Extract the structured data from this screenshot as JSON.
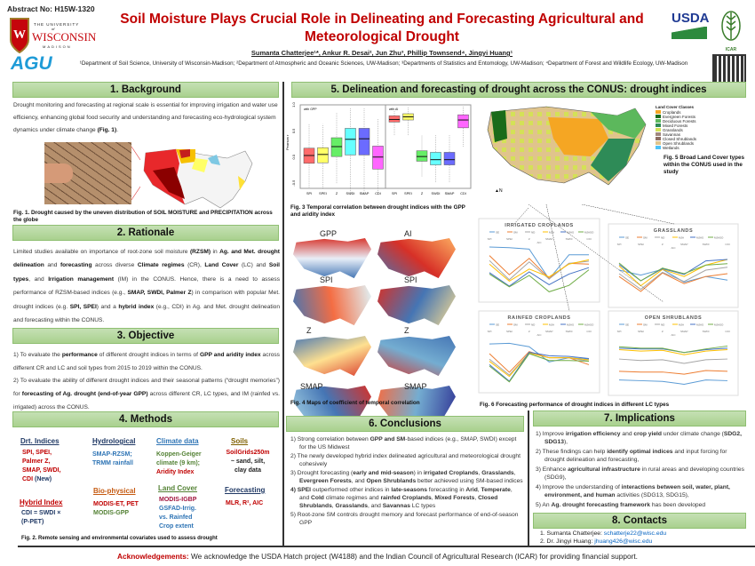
{
  "header": {
    "abstract": "Abstract No: H15W-1320",
    "title": "Soil Moisture Plays Crucial Role in Delineating and Forecasting Agricultural and Meteorological Drought",
    "authors": "Sumanta Chatterjee¹*, Ankur R. Desai², Jun Zhu³, Phillip Townsend⁴, Jingyi Huang¹",
    "affiliations": "¹Department of Soil Science, University of Wisconsin-Madison; ²Department of Atmospheric and Oceanic Sciences, UW-Madison; ³Departments of Statistics and Entomology, UW-Madison; ⁴Department of Forest and Wildlife Ecology, UW-Madison",
    "logos": {
      "uw_line1": "THE UNIVERSITY",
      "uw_line2": "of",
      "uw_line3": "WISCONSIN",
      "uw_line4": "MADISON",
      "agu": "AGU",
      "usda": "USDA",
      "icar": "ICAR"
    }
  },
  "colors": {
    "title": "#c00000",
    "header_green": "#a9d18e",
    "link": "#0563c1"
  },
  "background": {
    "heading": "1. Background",
    "text": [
      [
        "Drought monitoring and forecasting at regional scale is essential for improving irrigation and water use efficiency, enhancing global food security and understanding and forecasting eco-hydrological system dynamics under climate change ",
        0
      ],
      [
        "(Fig. 1)",
        1
      ],
      [
        ".",
        0
      ]
    ],
    "caption": "Fig. 1. Drought caused by the uneven distribution of SOIL MOISTURE and PRECIPITATION across the globe"
  },
  "rationale": {
    "heading": "2. Rationale",
    "text": [
      [
        "Limited studies available on importance of root-zone soil moisture ",
        0
      ],
      [
        "(RZSM)",
        1
      ],
      [
        " in ",
        0
      ],
      [
        "Ag. and Met. drought delineation",
        1
      ],
      [
        " and ",
        0
      ],
      [
        "forecasting",
        1
      ],
      [
        " across diverse ",
        0
      ],
      [
        "Climate regimes",
        1
      ],
      [
        " (CR), ",
        0
      ],
      [
        "Land Cover",
        1
      ],
      [
        " (LC) and ",
        0
      ],
      [
        "Soil types",
        1
      ],
      [
        ", and ",
        0
      ],
      [
        "Irrigation management",
        1
      ],
      [
        " (IM) in the CONUS. Hence, there is a need to assess performance of RZSM-based indices (e.g., ",
        0
      ],
      [
        "SMAP, SWDI, Palmer Z",
        1
      ],
      [
        ") in comparison with popular Met. drought indices (e.g. ",
        0
      ],
      [
        "SPI, SPEI",
        1
      ],
      [
        ") and a ",
        0
      ],
      [
        "hybrid index",
        1
      ],
      [
        " (e.g., CDI) in Ag. and Met. drought delineation and forecasting within the CONUS.",
        0
      ]
    ]
  },
  "objective": {
    "heading": "3. Objective",
    "text1": [
      [
        "1) To evaluate the ",
        0
      ],
      [
        "performance",
        1
      ],
      [
        " of different drought indices in terms of ",
        0
      ],
      [
        "GPP and aridity index",
        1
      ],
      [
        " across different CR and LC and soil types from 2015 to 2019 within the CONUS.",
        0
      ]
    ],
    "text2": [
      [
        "2) To evaluate the ability of different drought indices and their seasonal patterns (“drought memories”) for ",
        0
      ],
      [
        "forecasting of Ag. drought (end-of-year GPP)",
        1
      ],
      [
        " across different CR, LC types, and IM (rainfed vs. irrigated) across the CONUS.",
        0
      ]
    ]
  },
  "methods": {
    "heading": "4. Methods",
    "drt_title": "Drt. Indices",
    "drt_items": [
      "SPI, SPEI,",
      "Palmer Z,",
      "SMAP, SWDI,"
    ],
    "drt_cdi": "CDI",
    "drt_new": " (New)",
    "hybrid_title": "Hybrid Index",
    "hybrid_items": [
      "CDI = SWDI ×",
      "(P-PET)"
    ],
    "hydro_title": "Hydrological",
    "hydro_items": [
      "SMAP-RZSM;",
      "TRMM rainfall"
    ],
    "bio_title": "Bio-physical",
    "bio_items": [
      "MODIS-ET, PET",
      "MODIS-GPP"
    ],
    "climate_title": "Climate data",
    "climate_items": [
      "Koppen-Geiger",
      "climate (9 km);"
    ],
    "climate_aridity": "Aridity Index",
    "land_title": "Land Cover",
    "land_igbp": "MODIS-IGBP",
    "land_items": [
      "GSFAD-Irrig.",
      "vs. Rainfed",
      "Crop extent"
    ],
    "soils_title": "Soils",
    "soils_src": "SoilGrids250m",
    "soils_items": [
      "~ sand, silt,",
      "clay data"
    ],
    "forecast_title": "Forecasting",
    "forecast_items": "MLR, R², AIC",
    "caption": "Fig. 2. Remote sensing and environmental covariates used to assess drought"
  },
  "delineation": {
    "heading": "5. Delineation and forecasting of drought across the CONUS: drought indices",
    "fig3_caption": "Fig. 3 Temporal correlation between drought indices with the GPP and aridity index",
    "fig4_caption": "Fig. 4 Maps of coefficient of temporal correlation",
    "fig4_labels": [
      "GPP",
      "AI",
      "SPI",
      "SPI",
      "Z",
      "Z",
      "SMAP",
      "SMAP"
    ],
    "fig5_caption": "Fig. 5 Broad Land Cover types within the CONUS used in the study",
    "fig5_legend_title": "Land Cover Classes",
    "fig5_legend": [
      {
        "label": "Croplands",
        "color": "#f5a623"
      },
      {
        "label": "Evergreen Forests",
        "color": "#1a6b1a"
      },
      {
        "label": "Deciduous Forests",
        "color": "#5cb85c"
      },
      {
        "label": "Mixed Forests",
        "color": "#2e8b57"
      },
      {
        "label": "Grasslands",
        "color": "#d4e157"
      },
      {
        "label": "Savannas",
        "color": "#a1887f"
      },
      {
        "label": "Closed Shrublands",
        "color": "#8d6e63"
      },
      {
        "label": "Open Shrublands",
        "color": "#e0c48c"
      },
      {
        "label": "Wetlands",
        "color": "#4fc3f7"
      }
    ],
    "fig6_caption": "Fig. 6 Forecasting performance of drought indices in different LC types"
  },
  "chart_data": [
    {
      "type": "box",
      "title": "with GPP",
      "ylabel": "Pearson r",
      "ylim": [
        -0.6,
        1.0
      ],
      "yticks": [
        "-0.5",
        "0.0",
        "0.5",
        "1.0"
      ],
      "categories": [
        "SPI",
        "SPEI",
        "Z",
        "SWDI",
        "SMAP",
        "CDI"
      ],
      "colors": [
        "#ff6b6b",
        "#ffff66",
        "#66ee66",
        "#66ffff",
        "#6b6bff",
        "#ff66ff"
      ],
      "boxes": [
        [
          -0.58,
          -0.12,
          0.03,
          0.17,
          0.63
        ],
        [
          -0.6,
          -0.11,
          0.05,
          0.18,
          0.63
        ],
        [
          -0.5,
          0.01,
          0.2,
          0.37,
          0.85
        ],
        [
          -0.72,
          0.04,
          0.34,
          0.55,
          0.95
        ],
        [
          -0.72,
          0.04,
          0.35,
          0.55,
          0.95
        ],
        [
          -0.72,
          -0.23,
          0.0,
          0.21,
          0.74
        ]
      ]
    },
    {
      "type": "box",
      "title": "with AI",
      "ylim": [
        -0.6,
        1.0
      ],
      "categories": [
        "SPI",
        "SPEI",
        "Z",
        "SWDI",
        "SMAP",
        "CDI"
      ],
      "colors": [
        "#ff6b6b",
        "#ffff66",
        "#66ee66",
        "#66ffff",
        "#6b6bff",
        "#ff66ff"
      ],
      "boxes": [
        [
          0.42,
          0.67,
          0.72,
          0.79,
          0.93
        ],
        [
          0.42,
          0.71,
          0.77,
          0.83,
          0.95
        ],
        [
          -0.37,
          -0.08,
          0.01,
          0.12,
          0.42
        ],
        [
          -0.48,
          -0.15,
          -0.05,
          0.09,
          0.42
        ],
        [
          -0.48,
          -0.15,
          -0.05,
          0.09,
          0.42
        ],
        [
          0.2,
          0.56,
          0.71,
          0.81,
          0.98
        ]
      ]
    },
    {
      "type": "line",
      "title": "IRRIGATED CROPLANDS",
      "xlabel": "AIC",
      "categories": [
        "SPI",
        "SPEI",
        "Z",
        "SMAP",
        "SWDI",
        "CDI"
      ],
      "legend": [
        "SE",
        "SM",
        "ND",
        "MJA",
        "MJAS",
        "MJASO"
      ],
      "series": [
        [
          8,
          7.9,
          7.7,
          3.5,
          6.9,
          6.9
        ],
        [
          6.8,
          4.1,
          6.4,
          3.6,
          5.7,
          5.6
        ],
        [
          6.1,
          3.4,
          5.9,
          3.5,
          5.7,
          6
        ],
        [
          5.6,
          3.2,
          4.9,
          3.8,
          5.6,
          6.2
        ],
        [
          4.4,
          2.5,
          4.5,
          2.7,
          4.2,
          5.1
        ],
        [
          4.2,
          2.4,
          4,
          1.7,
          2.6,
          4.8
        ]
      ]
    },
    {
      "type": "line",
      "title": "GRASSLANDS",
      "xlabel": "AIC",
      "categories": [
        "SPI",
        "SPEI",
        "Z",
        "SMAP",
        "SWDI",
        "CDI"
      ],
      "legend": [
        "SE",
        "SM",
        "ND",
        "MJA",
        "MJAS",
        "MJASO"
      ],
      "series": [
        [
          5.5,
          4.8,
          5.6,
          3.8,
          4.6,
          4.1
        ],
        [
          4.6,
          2.5,
          5.1,
          3.6,
          4.6,
          5
        ],
        [
          5,
          2.8,
          5.2,
          3.9,
          5.5,
          5.9
        ],
        [
          6.1,
          3.3,
          5.6,
          4.6,
          6.2,
          7
        ],
        [
          6.3,
          4,
          5.7,
          4.9,
          6.8,
          7
        ],
        [
          6.5,
          4,
          5.8,
          5,
          6.2,
          6.4
        ]
      ]
    },
    {
      "type": "line",
      "title": "RAINFED CROPLANDS",
      "xlabel": "AIC",
      "categories": [
        "SPI",
        "SPEI",
        "Z",
        "SMAP",
        "SWDI",
        "CDI"
      ],
      "legend": [
        "SE",
        "SM",
        "ND",
        "MJA",
        "MJAS",
        "MJASO"
      ],
      "series": [
        [
          7.3,
          7.4,
          6.9,
          4.7,
          5.3,
          5.1
        ],
        [
          5.9,
          3.2,
          6.2,
          5.3,
          5.3,
          4.3
        ],
        [
          5.1,
          2.8,
          6,
          5.3,
          5.3,
          4.8
        ],
        [
          4.8,
          2.6,
          6,
          5.3,
          5.3,
          5
        ],
        [
          4.3,
          1.9,
          6.1,
          5.6,
          5.5,
          5.2
        ],
        [
          4.1,
          1.8,
          5.9,
          4.9,
          4.9,
          4.8
        ]
      ]
    },
    {
      "type": "line",
      "title": "OPEN SHRUBLANDS",
      "xlabel": "AIC",
      "categories": [
        "SPI",
        "SPEI",
        "Z",
        "SMAP",
        "SWDI",
        "CDI"
      ],
      "legend": [
        "SE",
        "SM",
        "ND",
        "MJA",
        "MJAS",
        "MJASO"
      ],
      "series": [
        [
          2.4,
          2.3,
          2.2,
          1.8,
          2.4,
          2.3
        ],
        [
          3.6,
          3.5,
          3.5,
          3.2,
          3.7,
          3.6
        ],
        [
          5.3,
          5.1,
          5.2,
          4.7,
          5.2,
          5.3
        ],
        [
          6.6,
          6.4,
          6.5,
          5.9,
          6.4,
          6.6
        ],
        [
          6.8,
          6.7,
          6.7,
          6.2,
          6.6,
          6.8
        ],
        [
          7,
          6.8,
          6.8,
          6.2,
          6.7,
          7.1
        ]
      ]
    }
  ],
  "conclusions": {
    "heading": "6. Conclusions",
    "items": [
      [
        [
          "1) Strong correlation between ",
          0
        ],
        [
          "GPP and SM",
          1
        ],
        [
          "-based indices (e.g., SMAP, SWDI) except for the US Midwest",
          0
        ]
      ],
      [
        [
          "2) The newly developed hybrid index delineated agricultural and meteorological drought cohesively",
          0
        ]
      ],
      [
        [
          "3) Drought forecasting (",
          0
        ],
        [
          "early and mid-season",
          1
        ],
        [
          ") in ",
          0
        ],
        [
          "irrigated Croplands",
          1
        ],
        [
          ", ",
          0
        ],
        [
          "Grasslands",
          1
        ],
        [
          ", ",
          0
        ],
        [
          "Evergreen Forests",
          1
        ],
        [
          ", and ",
          0
        ],
        [
          "Open Shrublands",
          1
        ],
        [
          " better achieved using SM-based indices",
          0
        ]
      ],
      [
        [
          "4) SPEI",
          1
        ],
        [
          " outperformed other indices in ",
          0
        ],
        [
          "late-seasons",
          1
        ],
        [
          " forecasting in ",
          0
        ],
        [
          "Arid",
          1
        ],
        [
          ", ",
          0
        ],
        [
          "Temperate",
          1
        ],
        [
          ", and ",
          0
        ],
        [
          "Cold",
          1
        ],
        [
          " climate regimes and ",
          0
        ],
        [
          "rainfed Croplands",
          1
        ],
        [
          ", ",
          0
        ],
        [
          "Mixed Forests",
          1
        ],
        [
          ", ",
          0
        ],
        [
          "Closed Shrublands",
          1
        ],
        [
          ", ",
          0
        ],
        [
          "Grasslands",
          1
        ],
        [
          ", and ",
          0
        ],
        [
          "Savannas",
          1
        ],
        [
          " LC types",
          0
        ]
      ],
      [
        [
          "5) Root-zone SM controls drought memory and forecast performance of end-of-season GPP",
          0
        ]
      ]
    ]
  },
  "implications": {
    "heading": "7. Implications",
    "items": [
      [
        [
          "1)  Improve ",
          0
        ],
        [
          "irrigation efficiency",
          1
        ],
        [
          " and ",
          0
        ],
        [
          "crop yield",
          1
        ],
        [
          " under climate change (",
          0
        ],
        [
          "SDG2, SDG13",
          1
        ],
        [
          "),",
          0
        ]
      ],
      [
        [
          "2)  These findings can help ",
          0
        ],
        [
          "identify optimal indices",
          1
        ],
        [
          " and input forcing for drought delineation and forecasting,",
          0
        ]
      ],
      [
        [
          "3)  Enhance ",
          0
        ],
        [
          "agricultural infrastructure",
          1
        ],
        [
          " in rural areas and developing countries (SDG9),",
          0
        ]
      ],
      [
        [
          "4)  Improve the understanding of ",
          0
        ],
        [
          "interactions between soil, water, plant, environment, and human",
          1
        ],
        [
          " activities (SDG13, SDG15),",
          0
        ]
      ],
      [
        [
          "5)  An ",
          0
        ],
        [
          "Ag. drought forecasting framework",
          1
        ],
        [
          " has been developed",
          0
        ]
      ]
    ]
  },
  "contacts": {
    "heading": "8. Contacts",
    "items": [
      {
        "name": "1.  Sumanta Chatterjee: ",
        "email": "schatterje22@wisc.edu"
      },
      {
        "name": "2.  Dr. Jingyi Huang: ",
        "email": "jhuang426@wisc.edu"
      }
    ]
  },
  "ack": {
    "label": "Acknowledgements:",
    "text": " We acknowledge the USDA Hatch project (W4188) and the Indian Council of Agricultural Research (ICAR) for providing financial support."
  }
}
